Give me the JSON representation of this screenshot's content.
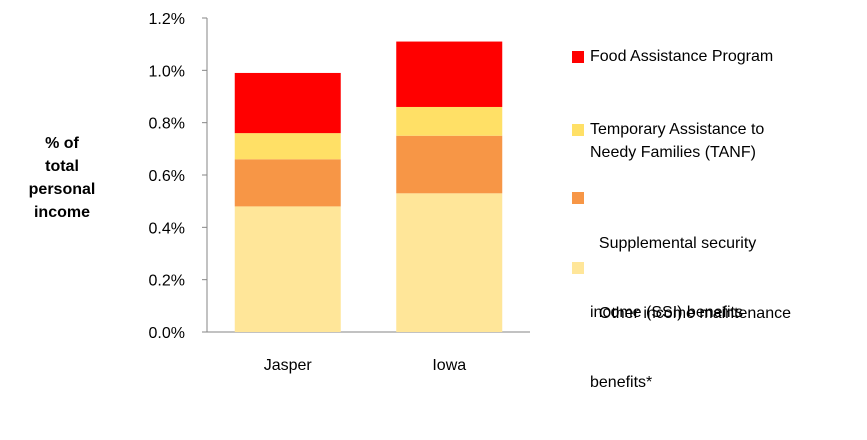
{
  "chart_data": {
    "type": "bar",
    "stacked": true,
    "categories": [
      "Jasper",
      "Iowa"
    ],
    "series": [
      {
        "name": "Other income maintenance benefits*",
        "color": "#FFE699",
        "values": [
          0.48,
          0.53
        ]
      },
      {
        "name": "Supplemental security income (SSI) benefits",
        "color": "#F79646",
        "values": [
          0.18,
          0.22
        ]
      },
      {
        "name": "Temporary Assistance to Needy Families (TANF)",
        "color": "#FFE066",
        "values": [
          0.1,
          0.11
        ]
      },
      {
        "name": "Food Assistance Program",
        "color": "#FF0000",
        "values": [
          0.23,
          0.25
        ]
      }
    ],
    "ylabel_lines": [
      "% of",
      "total",
      "personal",
      "income"
    ],
    "yticks": [
      "0.0%",
      "0.2%",
      "0.4%",
      "0.6%",
      "0.8%",
      "1.0%",
      "1.2%"
    ],
    "ylim": [
      0,
      1.2
    ],
    "grid": false,
    "legend_position": "right",
    "legend": [
      {
        "lines": [
          "Food Assistance Program"
        ],
        "color": "#FF0000"
      },
      {
        "lines": [
          "Temporary Assistance to",
          "Needy Families (TANF)"
        ],
        "color": "#FFE066"
      },
      {
        "lines": [
          "  Supplemental security",
          "income (SSI) benefits"
        ],
        "color": "#F79646"
      },
      {
        "lines": [
          "  Other income maintenance",
          "benefits*"
        ],
        "color": "#FFE699"
      }
    ]
  }
}
